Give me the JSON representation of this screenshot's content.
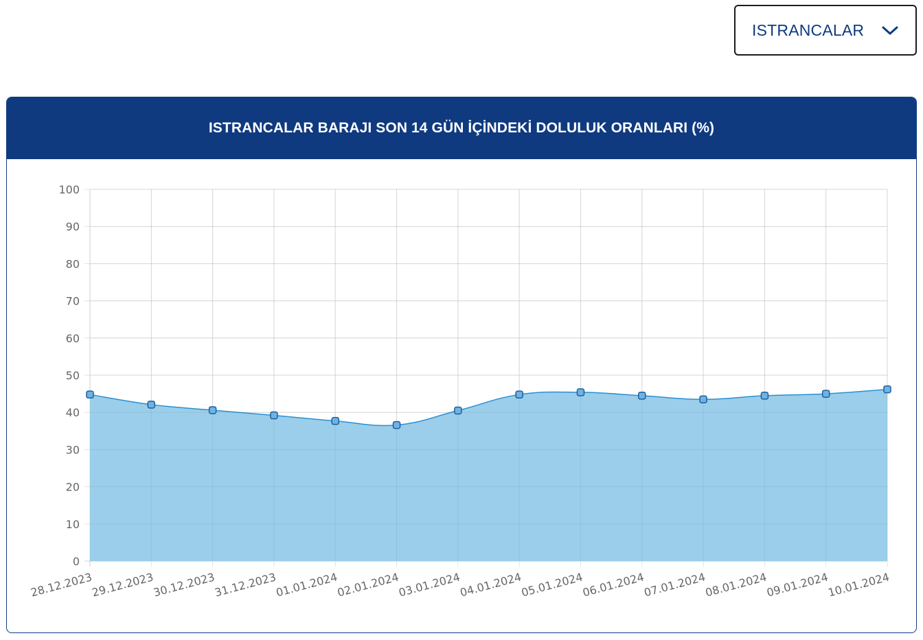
{
  "selector": {
    "selected": "ISTRANCALAR",
    "icon": "chevron-down-icon"
  },
  "colors": {
    "header_bg": "#0f3a80",
    "area_fill": "#99cdea",
    "line": "#2a8fd0",
    "point_fill": "#6fb3e3",
    "point_stroke": "#1d5e9e",
    "grid": "#e2e2e2"
  },
  "chart_data": {
    "type": "area",
    "title": "ISTRANCALAR BARAJI SON 14 GÜN İÇİNDEKİ DOLULUK ORANLARI (%)",
    "xlabel": "",
    "ylabel": "",
    "ylim": [
      0,
      100
    ],
    "yticks": [
      0,
      10,
      20,
      30,
      40,
      50,
      60,
      70,
      80,
      90,
      100
    ],
    "grid": true,
    "legend": "none",
    "categories": [
      "28.12.2023",
      "29.12.2023",
      "30.12.2023",
      "31.12.2023",
      "01.01.2024",
      "02.01.2024",
      "03.01.2024",
      "04.01.2024",
      "05.01.2024",
      "06.01.2024",
      "07.01.2024",
      "08.01.2024",
      "09.01.2024",
      "10.01.2024"
    ],
    "series": [
      {
        "values": [
          44.8,
          42.1,
          40.6,
          39.2,
          37.7,
          36.6,
          40.5,
          44.8,
          45.4,
          44.5,
          43.5,
          44.5,
          45.0,
          46.2
        ]
      }
    ]
  }
}
